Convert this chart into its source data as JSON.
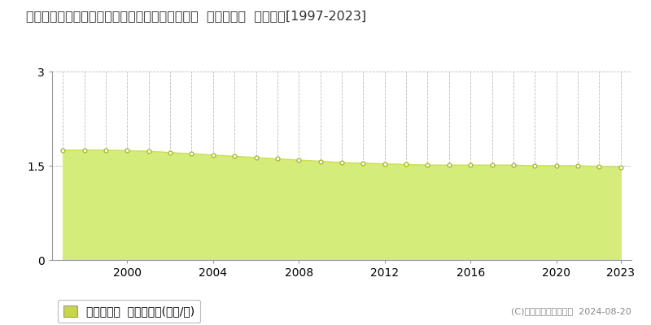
{
  "title": "福島県東白川郡鮫川村大字渡瀬字中野町３１番２  基準地価格  地価推移[1997-2023]",
  "years": [
    1997,
    1998,
    1999,
    2000,
    2001,
    2002,
    2003,
    2004,
    2005,
    2006,
    2007,
    2008,
    2009,
    2010,
    2011,
    2012,
    2013,
    2014,
    2015,
    2016,
    2017,
    2018,
    2019,
    2020,
    2021,
    2022,
    2023
  ],
  "values": [
    1.75,
    1.75,
    1.75,
    1.74,
    1.73,
    1.71,
    1.69,
    1.67,
    1.65,
    1.63,
    1.61,
    1.59,
    1.57,
    1.55,
    1.54,
    1.53,
    1.52,
    1.51,
    1.51,
    1.51,
    1.51,
    1.51,
    1.5,
    1.5,
    1.5,
    1.49,
    1.48
  ],
  "fill_color": "#d4ed7a",
  "line_color": "#c8e050",
  "marker_facecolor": "#ffffff",
  "marker_edgecolor": "#aaba30",
  "bg_color": "#ffffff",
  "grid_color": "#bbbbbb",
  "ylim": [
    0,
    3
  ],
  "yticks": [
    0,
    1.5,
    3
  ],
  "ytick_labels": [
    "0",
    "1.5",
    "3"
  ],
  "xtick_years": [
    2000,
    2004,
    2008,
    2012,
    2016,
    2020,
    2023
  ],
  "legend_label": "基準地価格  平均坪単価(万円/坪)",
  "legend_color": "#c8d44a",
  "copyright_text": "(C)土地価格ドットコム  2024-08-20",
  "title_fontsize": 11.5,
  "tick_fontsize": 9,
  "legend_fontsize": 9.5,
  "copyright_fontsize": 8
}
